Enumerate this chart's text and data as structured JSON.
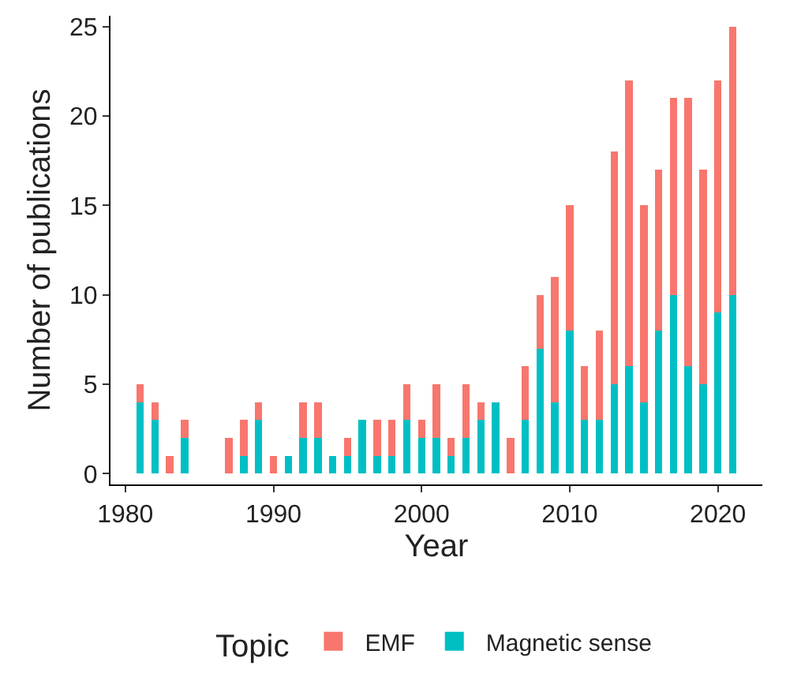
{
  "chart_data": {
    "type": "bar",
    "stacked": true,
    "xlabel": "Year",
    "ylabel": "Number of publications",
    "legend_title": "Topic",
    "legend": "bottom",
    "x": [
      1981,
      1982,
      1983,
      1984,
      1985,
      1986,
      1987,
      1988,
      1989,
      1990,
      1991,
      1992,
      1993,
      1994,
      1995,
      1996,
      1997,
      1998,
      1999,
      2000,
      2001,
      2002,
      2003,
      2004,
      2005,
      2006,
      2007,
      2008,
      2009,
      2010,
      2011,
      2012,
      2013,
      2014,
      2015,
      2016,
      2017,
      2018,
      2019,
      2020,
      2021
    ],
    "series": [
      {
        "name": "Magnetic sense",
        "color": "#00bfc4",
        "values": [
          4,
          3,
          0,
          2,
          0,
          0,
          0,
          1,
          3,
          0,
          1,
          2,
          2,
          1,
          1,
          3,
          1,
          1,
          3,
          2,
          2,
          1,
          2,
          3,
          4,
          0,
          3,
          7,
          4,
          8,
          3,
          3,
          5,
          6,
          4,
          8,
          10,
          6,
          5,
          9,
          10
        ]
      },
      {
        "name": "EMF",
        "color": "#f8766d",
        "values": [
          1,
          1,
          1,
          1,
          0,
          0,
          2,
          2,
          1,
          1,
          0,
          2,
          2,
          0,
          1,
          0,
          2,
          2,
          2,
          1,
          3,
          1,
          3,
          1,
          0,
          2,
          3,
          3,
          7,
          7,
          3,
          5,
          13,
          16,
          11,
          9,
          11,
          15,
          12,
          13,
          15
        ]
      }
    ],
    "xlim": [
      1979,
      2023
    ],
    "xticks": [
      1980,
      1990,
      2000,
      2010,
      2020
    ],
    "ylim": [
      -0.6,
      25.6
    ],
    "yticks": [
      0,
      5,
      10,
      15,
      20,
      25
    ]
  }
}
